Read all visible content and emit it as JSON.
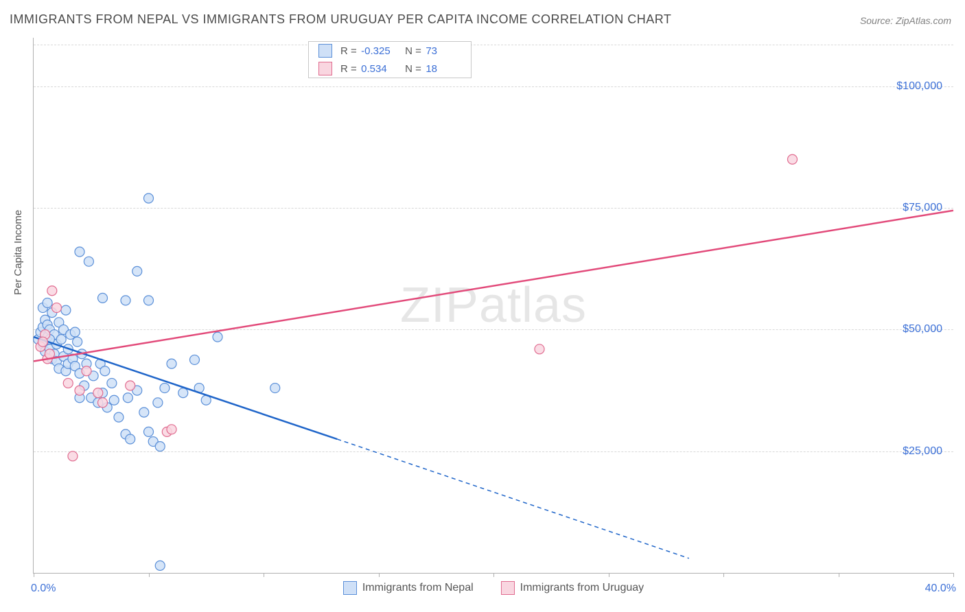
{
  "title": "IMMIGRANTS FROM NEPAL VS IMMIGRANTS FROM URUGUAY PER CAPITA INCOME CORRELATION CHART",
  "source": "Source: ZipAtlas.com",
  "watermark_left": "ZIP",
  "watermark_right": "atlas",
  "chart": {
    "type": "scatter",
    "y_axis_label": "Per Capita Income",
    "xlim": [
      0,
      40
    ],
    "ylim": [
      0,
      110000
    ],
    "x_tick_positions": [
      0,
      5,
      10,
      15,
      20,
      25,
      30,
      35,
      40
    ],
    "x_tick_labels": {
      "start": "0.0%",
      "end": "40.0%"
    },
    "y_gridlines": [
      25000,
      50000,
      75000,
      100000
    ],
    "y_tick_labels": [
      "$25,000",
      "$50,000",
      "$75,000",
      "$100,000"
    ],
    "grid_color": "#d8d8d8",
    "axis_color": "#b0b0b0",
    "tick_label_color": "#3b6fd6",
    "background_color": "#ffffff",
    "series": [
      {
        "name": "Immigrants from Nepal",
        "color_fill": "#cfe0f7",
        "color_stroke": "#5a8fd8",
        "r_value": "-0.325",
        "n_value": "73",
        "trend": {
          "color": "#1f65c9",
          "solid": [
            [
              0,
              48500
            ],
            [
              13.2,
              27500
            ]
          ],
          "dashed": [
            [
              13.2,
              27500
            ],
            [
              28.5,
              3000
            ]
          ]
        },
        "points": [
          [
            0.2,
            48000
          ],
          [
            0.3,
            49500
          ],
          [
            0.4,
            50500
          ],
          [
            0.4,
            47000
          ],
          [
            0.5,
            52000
          ],
          [
            0.5,
            45500
          ],
          [
            0.6,
            51000
          ],
          [
            0.6,
            48500
          ],
          [
            0.7,
            46000
          ],
          [
            0.7,
            50000
          ],
          [
            0.8,
            44000
          ],
          [
            0.8,
            53500
          ],
          [
            0.9,
            49000
          ],
          [
            0.9,
            45000
          ],
          [
            1.0,
            47000
          ],
          [
            1.0,
            43500
          ],
          [
            1.1,
            51500
          ],
          [
            1.1,
            42000
          ],
          [
            1.2,
            48000
          ],
          [
            1.3,
            44500
          ],
          [
            1.3,
            50000
          ],
          [
            1.4,
            41500
          ],
          [
            1.5,
            46000
          ],
          [
            1.5,
            43000
          ],
          [
            1.6,
            49000
          ],
          [
            1.7,
            44000
          ],
          [
            1.8,
            42500
          ],
          [
            1.9,
            47500
          ],
          [
            2.0,
            36000
          ],
          [
            2.0,
            41000
          ],
          [
            2.1,
            45000
          ],
          [
            2.2,
            38500
          ],
          [
            2.3,
            43000
          ],
          [
            2.4,
            64000
          ],
          [
            2.5,
            36000
          ],
          [
            2.6,
            40500
          ],
          [
            2.8,
            35000
          ],
          [
            2.9,
            43000
          ],
          [
            3.0,
            37000
          ],
          [
            3.1,
            41500
          ],
          [
            3.2,
            34000
          ],
          [
            3.4,
            39000
          ],
          [
            3.5,
            35500
          ],
          [
            3.7,
            32000
          ],
          [
            4.0,
            28500
          ],
          [
            4.1,
            36000
          ],
          [
            4.2,
            27500
          ],
          [
            4.5,
            37500
          ],
          [
            4.5,
            62000
          ],
          [
            4.8,
            33000
          ],
          [
            5.0,
            29000
          ],
          [
            5.0,
            77000
          ],
          [
            5.2,
            27000
          ],
          [
            5.4,
            35000
          ],
          [
            5.5,
            26000
          ],
          [
            5.5,
            1500
          ],
          [
            5.7,
            38000
          ],
          [
            6.0,
            43000
          ],
          [
            6.5,
            37000
          ],
          [
            7.0,
            43800
          ],
          [
            7.2,
            38000
          ],
          [
            7.5,
            35500
          ],
          [
            8.0,
            48500
          ],
          [
            5.0,
            56000
          ],
          [
            1.4,
            54000
          ],
          [
            2.0,
            66000
          ],
          [
            3.0,
            56500
          ],
          [
            4.0,
            56000
          ],
          [
            0.4,
            54500
          ],
          [
            0.6,
            55500
          ],
          [
            10.5,
            38000
          ],
          [
            0.7,
            48000
          ],
          [
            1.8,
            49500
          ]
        ]
      },
      {
        "name": "Immigrants from Uruguay",
        "color_fill": "#f9d6e0",
        "color_stroke": "#e06b8f",
        "r_value": "0.534",
        "n_value": "18",
        "trend": {
          "color": "#e24a7a",
          "solid": [
            [
              0,
              43500
            ],
            [
              40,
              74500
            ]
          ],
          "dashed": null
        },
        "points": [
          [
            0.3,
            46500
          ],
          [
            0.5,
            49000
          ],
          [
            0.6,
            44000
          ],
          [
            0.8,
            58000
          ],
          [
            1.0,
            54500
          ],
          [
            0.4,
            47500
          ],
          [
            0.7,
            45000
          ],
          [
            1.5,
            39000
          ],
          [
            2.0,
            37500
          ],
          [
            2.3,
            41500
          ],
          [
            2.8,
            37000
          ],
          [
            3.0,
            35000
          ],
          [
            1.7,
            24000
          ],
          [
            4.2,
            38500
          ],
          [
            5.8,
            29000
          ],
          [
            6.0,
            29500
          ],
          [
            22.0,
            46000
          ],
          [
            33.0,
            85000
          ]
        ]
      }
    ]
  }
}
